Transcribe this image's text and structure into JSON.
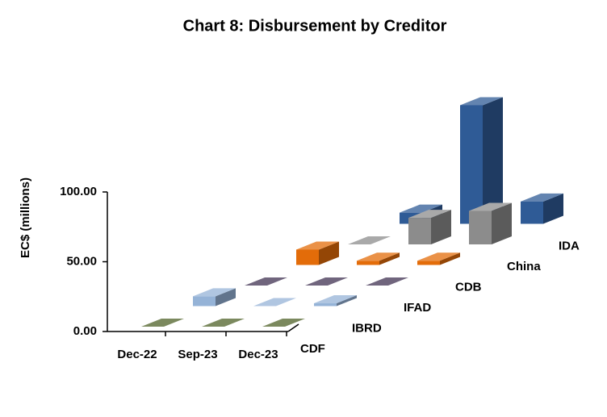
{
  "chart_data": {
    "type": "bar3d",
    "title": "Chart 8: Disbursement  by Creditor",
    "y_label": "EC$ (millions)",
    "categories": [
      "Dec-22",
      "Sep-23",
      "Dec-23"
    ],
    "series": [
      {
        "name": "CDF",
        "color": "#4f6228",
        "values": [
          0,
          0,
          0
        ]
      },
      {
        "name": "IBRD",
        "color": "#95b3d7",
        "values": [
          7,
          0,
          2
        ]
      },
      {
        "name": "IFAD",
        "color": "#403152",
        "values": [
          0,
          0,
          0
        ]
      },
      {
        "name": "CDB",
        "color": "#e36c09",
        "values": [
          11,
          3,
          3
        ]
      },
      {
        "name": "China",
        "color": "#8c8c8c",
        "values": [
          0,
          19,
          24
        ]
      },
      {
        "name": "IDA",
        "color": "#2f5b96",
        "values": [
          8,
          85,
          16
        ]
      }
    ],
    "ylim": [
      0,
      100
    ],
    "yticks": [
      {
        "value": 0,
        "label": "0.00"
      },
      {
        "value": 50,
        "label": "50.00"
      },
      {
        "value": 100,
        "label": "100.00"
      }
    ]
  }
}
